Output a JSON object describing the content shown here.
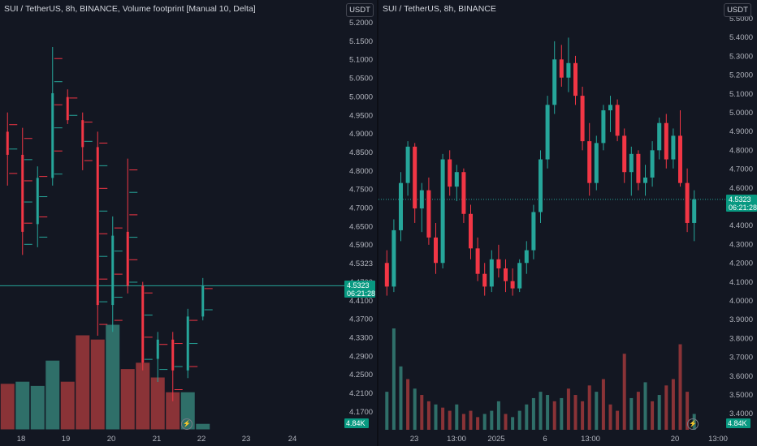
{
  "colors": {
    "up": "#26a69a",
    "down": "#f23645",
    "upVol": "#2f6f69",
    "downVol": "#8a3337",
    "background": "#131722",
    "text": "#b2b5be"
  },
  "left": {
    "legend": "SUI / TetherUS, 8h, BINANCE, Volume footprint [Manual 10, Delta]",
    "currency": "USDT",
    "last_price": "4.5323",
    "countdown": "06:21:28",
    "volume_label": "4.84",
    "volume_unit_icon": "k-icon",
    "bolt_icon": "lightning-icon"
  },
  "right": {
    "legend": "SUI / TetherUS, 8h, BINANCE",
    "currency": "USDT",
    "last_price": "4.5323",
    "countdown": "06:21:28",
    "volume_label": "4.84",
    "volume_unit_icon": "k-icon",
    "bolt_icon": "lightning-icon"
  },
  "chart_data": [
    {
      "type": "candlestick",
      "title": "SUI / TetherUS, 8h, BINANCE, Volume footprint [Manual 10, Delta]",
      "yticks": [
        "5.2000",
        "5.1500",
        "5.1000",
        "5.0500",
        "5.0000",
        "4.9500",
        "4.9000",
        "4.8500",
        "4.8000",
        "4.7500",
        "4.7000",
        "4.6500",
        "4.5900",
        "4.5323",
        "4.4700",
        "4.4100",
        "4.3700",
        "4.3300",
        "4.2900",
        "4.2500",
        "4.2100",
        "4.1700"
      ],
      "xticks": [
        "18",
        "19",
        "20",
        "21",
        "22",
        "23",
        "24"
      ],
      "ylim": [
        4.15,
        5.22
      ],
      "candles": [
        {
          "o": 4.92,
          "h": 4.97,
          "l": 4.78,
          "c": 4.86
        },
        {
          "o": 4.86,
          "h": 4.93,
          "l": 4.6,
          "c": 4.66
        },
        {
          "o": 4.68,
          "h": 4.83,
          "l": 4.62,
          "c": 4.8
        },
        {
          "o": 4.8,
          "h": 5.14,
          "l": 4.78,
          "c": 5.02
        },
        {
          "o": 5.01,
          "h": 5.03,
          "l": 4.94,
          "c": 4.95
        },
        {
          "o": 4.95,
          "h": 4.97,
          "l": 4.82,
          "c": 4.88
        },
        {
          "o": 4.88,
          "h": 4.92,
          "l": 4.39,
          "c": 4.47
        },
        {
          "o": 4.47,
          "h": 4.7,
          "l": 4.4,
          "c": 4.65
        },
        {
          "o": 4.66,
          "h": 4.85,
          "l": 4.5,
          "c": 4.52
        },
        {
          "o": 4.52,
          "h": 4.53,
          "l": 4.3,
          "c": 4.32
        },
        {
          "o": 4.33,
          "h": 4.4,
          "l": 4.27,
          "c": 4.38
        },
        {
          "o": 4.38,
          "h": 4.4,
          "l": 4.22,
          "c": 4.3
        },
        {
          "o": 4.3,
          "h": 4.46,
          "l": 4.28,
          "c": 4.44
        },
        {
          "o": 4.44,
          "h": 4.54,
          "l": 4.43,
          "c": 4.52
        }
      ],
      "volume": [
        {
          "v": 2.2,
          "up": false
        },
        {
          "v": 2.3,
          "up": true
        },
        {
          "v": 2.1,
          "up": true
        },
        {
          "v": 3.3,
          "up": true
        },
        {
          "v": 2.3,
          "up": false
        },
        {
          "v": 4.5,
          "up": false
        },
        {
          "v": 4.3,
          "up": false
        },
        {
          "v": 5.0,
          "up": true
        },
        {
          "v": 2.9,
          "up": false
        },
        {
          "v": 3.2,
          "up": false
        },
        {
          "v": 2.5,
          "up": false
        },
        {
          "v": 1.8,
          "up": false
        },
        {
          "v": 1.8,
          "up": true
        },
        {
          "v": 0.3,
          "up": true
        }
      ]
    },
    {
      "type": "candlestick",
      "title": "SUI / TetherUS, 8h, BINANCE",
      "yticks": [
        "5.5000",
        "5.4000",
        "5.3000",
        "5.2000",
        "5.1000",
        "5.0000",
        "4.9000",
        "4.8000",
        "4.7000",
        "4.6000",
        "4.5323",
        "4.4000",
        "4.3000",
        "4.2000",
        "4.1000",
        "4.0000",
        "3.9000",
        "3.8000",
        "3.7000",
        "3.6000",
        "3.5000",
        "3.4000"
      ],
      "xticks": [
        "23",
        "13:00",
        "2025",
        "6",
        "13:00",
        "20",
        "13:00"
      ],
      "ylim": [
        3.36,
        5.52
      ],
      "candles": [
        {
          "o": 4.18,
          "h": 4.25,
          "l": 4.0,
          "c": 4.05
        },
        {
          "o": 4.05,
          "h": 4.42,
          "l": 4.02,
          "c": 4.36
        },
        {
          "o": 4.36,
          "h": 4.68,
          "l": 4.3,
          "c": 4.62
        },
        {
          "o": 4.62,
          "h": 4.85,
          "l": 4.55,
          "c": 4.82
        },
        {
          "o": 4.82,
          "h": 4.84,
          "l": 4.4,
          "c": 4.48
        },
        {
          "o": 4.48,
          "h": 4.62,
          "l": 4.35,
          "c": 4.58
        },
        {
          "o": 4.58,
          "h": 4.65,
          "l": 4.28,
          "c": 4.32
        },
        {
          "o": 4.32,
          "h": 4.4,
          "l": 4.12,
          "c": 4.18
        },
        {
          "o": 4.18,
          "h": 4.78,
          "l": 4.15,
          "c": 4.75
        },
        {
          "o": 4.75,
          "h": 4.8,
          "l": 4.55,
          "c": 4.6
        },
        {
          "o": 4.6,
          "h": 4.72,
          "l": 4.52,
          "c": 4.68
        },
        {
          "o": 4.68,
          "h": 4.7,
          "l": 4.4,
          "c": 4.45
        },
        {
          "o": 4.45,
          "h": 4.5,
          "l": 4.2,
          "c": 4.26
        },
        {
          "o": 4.26,
          "h": 4.32,
          "l": 4.08,
          "c": 4.12
        },
        {
          "o": 4.12,
          "h": 4.18,
          "l": 4.0,
          "c": 4.05
        },
        {
          "o": 4.05,
          "h": 4.25,
          "l": 4.02,
          "c": 4.2
        },
        {
          "o": 4.2,
          "h": 4.28,
          "l": 4.1,
          "c": 4.15
        },
        {
          "o": 4.15,
          "h": 4.2,
          "l": 4.02,
          "c": 4.08
        },
        {
          "o": 4.08,
          "h": 4.15,
          "l": 4.0,
          "c": 4.04
        },
        {
          "o": 4.04,
          "h": 4.2,
          "l": 4.02,
          "c": 4.18
        },
        {
          "o": 4.18,
          "h": 4.3,
          "l": 4.12,
          "c": 4.25
        },
        {
          "o": 4.25,
          "h": 4.5,
          "l": 4.2,
          "c": 4.46
        },
        {
          "o": 4.46,
          "h": 4.8,
          "l": 4.4,
          "c": 4.75
        },
        {
          "o": 4.75,
          "h": 5.1,
          "l": 4.7,
          "c": 5.05
        },
        {
          "o": 5.05,
          "h": 5.4,
          "l": 5.0,
          "c": 5.3
        },
        {
          "o": 5.3,
          "h": 5.38,
          "l": 5.15,
          "c": 5.2
        },
        {
          "o": 5.2,
          "h": 5.42,
          "l": 5.12,
          "c": 5.28
        },
        {
          "o": 5.28,
          "h": 5.32,
          "l": 5.05,
          "c": 5.1
        },
        {
          "o": 5.1,
          "h": 5.15,
          "l": 4.8,
          "c": 4.85
        },
        {
          "o": 4.85,
          "h": 4.95,
          "l": 4.55,
          "c": 4.62
        },
        {
          "o": 4.62,
          "h": 4.88,
          "l": 4.58,
          "c": 4.84
        },
        {
          "o": 4.84,
          "h": 5.05,
          "l": 4.8,
          "c": 5.02
        },
        {
          "o": 5.02,
          "h": 5.1,
          "l": 4.9,
          "c": 5.05
        },
        {
          "o": 5.05,
          "h": 5.08,
          "l": 4.85,
          "c": 4.88
        },
        {
          "o": 4.88,
          "h": 4.92,
          "l": 4.62,
          "c": 4.68
        },
        {
          "o": 4.68,
          "h": 4.82,
          "l": 4.55,
          "c": 4.78
        },
        {
          "o": 4.78,
          "h": 4.8,
          "l": 4.58,
          "c": 4.62
        },
        {
          "o": 4.62,
          "h": 4.72,
          "l": 4.55,
          "c": 4.65
        },
        {
          "o": 4.65,
          "h": 4.85,
          "l": 4.6,
          "c": 4.8
        },
        {
          "o": 4.8,
          "h": 4.98,
          "l": 4.75,
          "c": 4.95
        },
        {
          "o": 4.95,
          "h": 5.0,
          "l": 4.7,
          "c": 4.75
        },
        {
          "o": 4.75,
          "h": 4.92,
          "l": 4.7,
          "c": 4.88
        },
        {
          "o": 4.88,
          "h": 5.02,
          "l": 4.6,
          "c": 4.62
        },
        {
          "o": 4.62,
          "h": 4.7,
          "l": 4.35,
          "c": 4.4
        },
        {
          "o": 4.4,
          "h": 4.58,
          "l": 4.3,
          "c": 4.53
        }
      ],
      "volume": [
        {
          "v": 1.2,
          "up": true
        },
        {
          "v": 3.2,
          "up": true
        },
        {
          "v": 2.0,
          "up": true
        },
        {
          "v": 1.6,
          "up": false
        },
        {
          "v": 1.3,
          "up": true
        },
        {
          "v": 1.1,
          "up": false
        },
        {
          "v": 0.9,
          "up": false
        },
        {
          "v": 0.8,
          "up": true
        },
        {
          "v": 0.7,
          "up": false
        },
        {
          "v": 0.6,
          "up": false
        },
        {
          "v": 0.8,
          "up": true
        },
        {
          "v": 0.5,
          "up": false
        },
        {
          "v": 0.6,
          "up": false
        },
        {
          "v": 0.4,
          "up": false
        },
        {
          "v": 0.5,
          "up": true
        },
        {
          "v": 0.6,
          "up": true
        },
        {
          "v": 0.9,
          "up": true
        },
        {
          "v": 0.5,
          "up": false
        },
        {
          "v": 0.4,
          "up": true
        },
        {
          "v": 0.6,
          "up": true
        },
        {
          "v": 0.8,
          "up": true
        },
        {
          "v": 1.0,
          "up": true
        },
        {
          "v": 1.2,
          "up": true
        },
        {
          "v": 1.1,
          "up": true
        },
        {
          "v": 0.9,
          "up": false
        },
        {
          "v": 1.0,
          "up": true
        },
        {
          "v": 1.3,
          "up": false
        },
        {
          "v": 1.1,
          "up": false
        },
        {
          "v": 0.9,
          "up": false
        },
        {
          "v": 1.4,
          "up": false
        },
        {
          "v": 1.2,
          "up": true
        },
        {
          "v": 1.6,
          "up": false
        },
        {
          "v": 0.8,
          "up": false
        },
        {
          "v": 0.6,
          "up": false
        },
        {
          "v": 2.4,
          "up": false
        },
        {
          "v": 1.0,
          "up": true
        },
        {
          "v": 1.2,
          "up": false
        },
        {
          "v": 1.5,
          "up": true
        },
        {
          "v": 0.9,
          "up": false
        },
        {
          "v": 1.1,
          "up": true
        },
        {
          "v": 1.4,
          "up": false
        },
        {
          "v": 1.6,
          "up": false
        },
        {
          "v": 2.7,
          "up": false
        },
        {
          "v": 1.2,
          "up": false
        },
        {
          "v": 0.5,
          "up": true
        }
      ]
    }
  ]
}
